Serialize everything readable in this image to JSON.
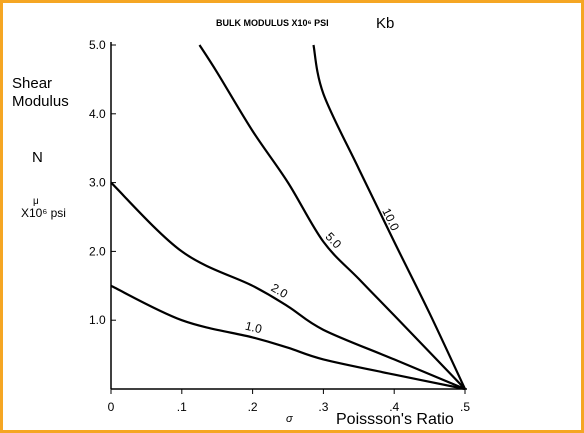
{
  "chart_data": {
    "type": "line",
    "title": "BULK MODULUS  X10⁶ PSI",
    "title_unit": "Kb",
    "ylabel": {
      "line1": "Shear",
      "line2": "Modulus",
      "symbol": "N",
      "mu": "μ",
      "unit": "X10⁶  psi"
    },
    "xlabel": "Poissson's Ratio",
    "xsymbol": "σ",
    "xlim": [
      0,
      0.5
    ],
    "ylim": [
      0,
      5.0
    ],
    "x_ticks": [
      {
        "value": 0,
        "label": "0"
      },
      {
        "value": 0.1,
        "label": ".1"
      },
      {
        "value": 0.2,
        "label": ".2"
      },
      {
        "value": 0.3,
        "label": ".3"
      },
      {
        "value": 0.4,
        "label": ".4"
      },
      {
        "value": 0.5,
        "label": ".5"
      }
    ],
    "y_ticks": [
      {
        "value": 1.0,
        "label": "1.0"
      },
      {
        "value": 2.0,
        "label": "2.0"
      },
      {
        "value": 3.0,
        "label": "3.0"
      },
      {
        "value": 4.0,
        "label": "4.0"
      },
      {
        "value": 5.0,
        "label": "5.0"
      }
    ],
    "grid": false,
    "series": [
      {
        "name": "1.0",
        "x": [
          0,
          0.1,
          0.2,
          0.25,
          0.3,
          0.4,
          0.5
        ],
        "y": [
          1.5,
          1.0,
          0.75,
          0.6,
          0.43,
          0.21,
          0
        ]
      },
      {
        "name": "2.0",
        "x": [
          0,
          0.1,
          0.2,
          0.25,
          0.3,
          0.4,
          0.5
        ],
        "y": [
          3.0,
          2.0,
          1.5,
          1.2,
          0.86,
          0.43,
          0
        ]
      },
      {
        "name": "5.0",
        "x": [
          0.125,
          0.15,
          0.2,
          0.25,
          0.3,
          0.35,
          0.4,
          0.5
        ],
        "y": [
          5.0,
          4.6,
          3.75,
          3.0,
          2.14,
          1.6,
          1.07,
          0
        ]
      },
      {
        "name": "10.0",
        "x": [
          0.286,
          0.3,
          0.35,
          0.4,
          0.45,
          0.5
        ],
        "y": [
          5.0,
          4.29,
          3.2,
          2.14,
          1.1,
          0
        ]
      }
    ]
  }
}
